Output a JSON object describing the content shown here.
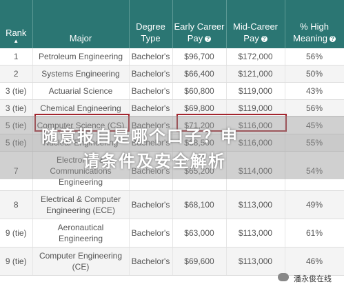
{
  "table": {
    "header": [
      "Rank",
      "Major",
      "Degree Type",
      "Early Career Pay",
      "Mid-Career Pay",
      "% High Meaning"
    ],
    "rows": [
      [
        "1",
        "Petroleum Engineering",
        "Bachelor's",
        "$96,700",
        "$172,000",
        "56%"
      ],
      [
        "2",
        "Systems Engineering",
        "Bachelor's",
        "$66,400",
        "$121,000",
        "50%"
      ],
      [
        "3 (tie)",
        "Actuarial Science",
        "Bachelor's",
        "$60,800",
        "$119,000",
        "43%"
      ],
      [
        "3 (tie)",
        "Chemical Engineering",
        "Bachelor's",
        "$69,800",
        "$119,000",
        "56%"
      ],
      [
        "5 (tie)",
        "Computer Science (CS)",
        "Bachelor's",
        "$71,200",
        "$116,000",
        "45%"
      ],
      [
        "5 (tie)",
        "Nuclear Engineering",
        "Bachelor's",
        "$68,500",
        "$116,000",
        "55%"
      ],
      [
        "7",
        "Electronics & Communications Engineering",
        "Bachelor's",
        "$65,200",
        "$114,000",
        "54%"
      ],
      [
        "8",
        "Electrical & Computer Engineering (ECE)",
        "Bachelor's",
        "$68,100",
        "$113,000",
        "49%"
      ],
      [
        "9 (tie)",
        "Aeronautical Engineering",
        "Bachelor's",
        "$63,000",
        "$113,000",
        "61%"
      ],
      [
        "9 (tie)",
        "Computer Engineering (CE)",
        "Bachelor's",
        "$69,600",
        "$113,000",
        "46%"
      ]
    ]
  },
  "watermark": {
    "lines": [
      "随意报自是哪个口子？申",
      "请条件及安全解析"
    ]
  },
  "footer": {
    "brand": "潘永俊在线"
  }
}
